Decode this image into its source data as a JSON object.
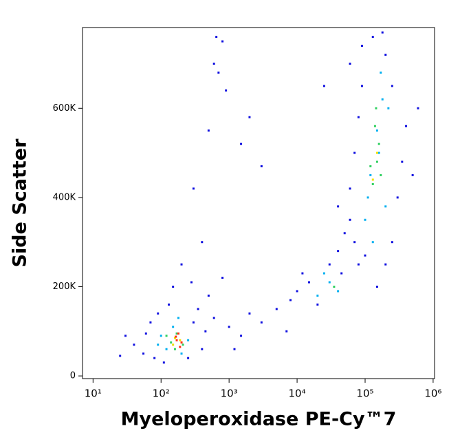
{
  "chart_data": {
    "type": "scatter",
    "x_label": "Myeloperoxidase PE-Cy™7",
    "y_label": "Side Scatter",
    "xscale": "log",
    "xlim": [
      7,
      1050000
    ],
    "xticks": [
      {
        "value": 10,
        "label": "10¹"
      },
      {
        "value": 100,
        "label": "10²"
      },
      {
        "value": 1000,
        "label": "10³"
      },
      {
        "value": 10000,
        "label": "10⁴"
      },
      {
        "value": 100000,
        "label": "10⁵"
      },
      {
        "value": 1000000,
        "label": "10⁶"
      }
    ],
    "ylim": [
      -6000,
      781000
    ],
    "yticks": [
      0,
      {
        "value": 200000,
        "label": "200K"
      },
      {
        "value": 400000,
        "label": "400K"
      },
      {
        "value": 600000,
        "label": "600K"
      }
    ],
    "grid": false,
    "series": [
      {
        "color": "#1010e0",
        "x": [
          40,
          55,
          60,
          70,
          80,
          90,
          110,
          130,
          250,
          300,
          350,
          400,
          450,
          500,
          30,
          25,
          150,
          200,
          280,
          600,
          1000,
          1500,
          2000,
          3000,
          5000,
          7000,
          1200,
          800,
          400,
          300,
          500,
          600,
          700,
          900,
          800,
          650,
          1500,
          2000,
          3000,
          25000,
          60000,
          90000,
          8000,
          10000,
          15000,
          20000,
          30000,
          40000,
          12000,
          50000,
          60000,
          45000,
          70000,
          60000,
          70000,
          80000,
          90000,
          250000,
          300000,
          350000,
          400000,
          250000,
          200000,
          130000,
          180000,
          500000,
          80000,
          200000,
          150000,
          100000,
          600000,
          40000
        ],
        "values": [
          70000,
          50000,
          95000,
          120000,
          40000,
          140000,
          30000,
          160000,
          40000,
          120000,
          150000,
          60000,
          100000,
          180000,
          90000,
          45000,
          200000,
          250000,
          210000,
          130000,
          110000,
          90000,
          140000,
          120000,
          150000,
          100000,
          60000,
          220000,
          300000,
          420000,
          550000,
          700000,
          680000,
          640000,
          750000,
          760000,
          520000,
          580000,
          470000,
          650000,
          700000,
          740000,
          170000,
          190000,
          210000,
          160000,
          250000,
          280000,
          230000,
          320000,
          350000,
          230000,
          300000,
          420000,
          500000,
          580000,
          650000,
          300000,
          400000,
          480000,
          560000,
          650000,
          720000,
          760000,
          770000,
          450000,
          250000,
          250000,
          200000,
          270000,
          600000,
          380000
        ]
      },
      {
        "color": "#00b0f0",
        "x": [
          100,
          120,
          150,
          200,
          250,
          180,
          90,
          20000,
          30000,
          40000,
          25000,
          100000,
          120000,
          150000,
          180000,
          110000,
          160000,
          200000,
          130000,
          220000,
          170000
        ],
        "values": [
          90000,
          60000,
          110000,
          50000,
          80000,
          130000,
          70000,
          180000,
          210000,
          190000,
          230000,
          350000,
          450000,
          550000,
          620000,
          400000,
          500000,
          380000,
          300000,
          600000,
          680000
        ]
      },
      {
        "color": "#30d060",
        "x": [
          140,
          170,
          210,
          160,
          120,
          35000,
          130000,
          150000,
          160000,
          140000,
          120000,
          170000,
          145000
        ],
        "values": [
          75000,
          95000,
          70000,
          60000,
          90000,
          200000,
          430000,
          480000,
          520000,
          560000,
          470000,
          450000,
          600000
        ]
      },
      {
        "color": "#f0e000",
        "x": [
          160,
          190,
          150,
          130000,
          150000
        ],
        "values": [
          85000,
          80000,
          70000,
          440000,
          500000
        ]
      },
      {
        "color": "#ff3010",
        "x": [
          170,
          200,
          180,
          190,
          165
        ],
        "values": [
          80000,
          75000,
          95000,
          65000,
          88000
        ]
      }
    ]
  }
}
